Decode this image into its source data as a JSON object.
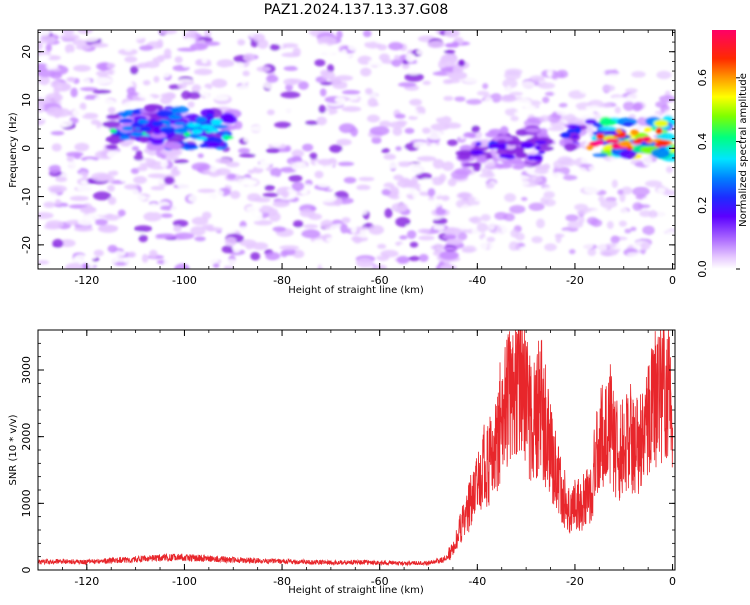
{
  "title": "PAZ1.2024.137.13.37.G08",
  "colors": {
    "snr_line": "#e8262b",
    "colormap": [
      "#ffffff",
      "#e6c8ff",
      "#c88cff",
      "#8a2be2",
      "#5b00ff",
      "#1d2cff",
      "#0080ff",
      "#00e5ff",
      "#00ff80",
      "#7fff00",
      "#ffff00",
      "#ff9900",
      "#ff2a00",
      "#ff0066",
      "#ff0099"
    ]
  },
  "chart_data": [
    {
      "type": "heatmap",
      "title": "PAZ1.2024.137.13.37.G08",
      "xlabel": "Height of straight line (km)",
      "ylabel": "Frequency (Hz)",
      "xlim": [
        -130,
        0.5
      ],
      "ylim": [
        -25,
        24.5
      ],
      "x_ticks": [
        -120,
        -100,
        -80,
        -60,
        -40,
        -20,
        0
      ],
      "y_ticks": [
        -20,
        -10,
        0,
        10,
        20
      ],
      "grid": false,
      "colorbar": {
        "label": "Normalized spectral amplitude",
        "range": [
          0,
          0.75
        ],
        "ticks": [
          0.0,
          0.2,
          0.4,
          0.6
        ]
      },
      "features": [
        {
          "x_range": [
            -115,
            -90
          ],
          "y_center": 4,
          "peak": 0.42
        },
        {
          "x_range": [
            -110,
            -100
          ],
          "y_center": 4.5,
          "peak": 0.35
        },
        {
          "x_range": [
            -46,
            -43
          ],
          "y_range": [
            15,
            24
          ],
          "peak": 0.15
        },
        {
          "x_range": [
            -46,
            -44
          ],
          "y_center": -21,
          "peak": 0.14
        },
        {
          "x_range": [
            -43,
            -26
          ],
          "y_center": 0,
          "peak": 0.25
        },
        {
          "x_range": [
            -22,
            -19
          ],
          "y_center": 3,
          "peak": 0.3
        },
        {
          "x_range": [
            -17,
            0
          ],
          "y_center": 2,
          "peak": 0.75
        }
      ]
    },
    {
      "type": "line",
      "xlabel": "Height of straight line (km)",
      "ylabel": "SNR (10 * v/v)",
      "xlim": [
        -130,
        0.5
      ],
      "ylim": [
        0,
        3600
      ],
      "x_ticks": [
        -120,
        -100,
        -80,
        -60,
        -40,
        -20,
        0
      ],
      "y_ticks": [
        0,
        1000,
        2000,
        3000
      ],
      "grid": false,
      "series": [
        {
          "x": [
            -130,
            -125,
            -120,
            -115,
            -110,
            -105,
            -100,
            -95,
            -90,
            -85,
            -80,
            -75,
            -70,
            -65,
            -60,
            -55,
            -50,
            -47,
            -45,
            -43,
            -41,
            -39,
            -37,
            -35,
            -33,
            -31,
            -29,
            -27,
            -25,
            -23,
            -21,
            -19,
            -17,
            -15,
            -13,
            -11,
            -9,
            -7,
            -5,
            -3,
            -1,
            0
          ],
          "y": [
            120,
            130,
            120,
            140,
            160,
            180,
            190,
            170,
            150,
            140,
            130,
            120,
            110,
            120,
            110,
            100,
            110,
            150,
            300,
            700,
            1100,
            1500,
            1700,
            2300,
            2600,
            3000,
            2200,
            2500,
            1800,
            1200,
            900,
            1000,
            1100,
            1900,
            2300,
            1700,
            2000,
            1800,
            2300,
            2600,
            2800,
            1900
          ]
        }
      ]
    }
  ]
}
